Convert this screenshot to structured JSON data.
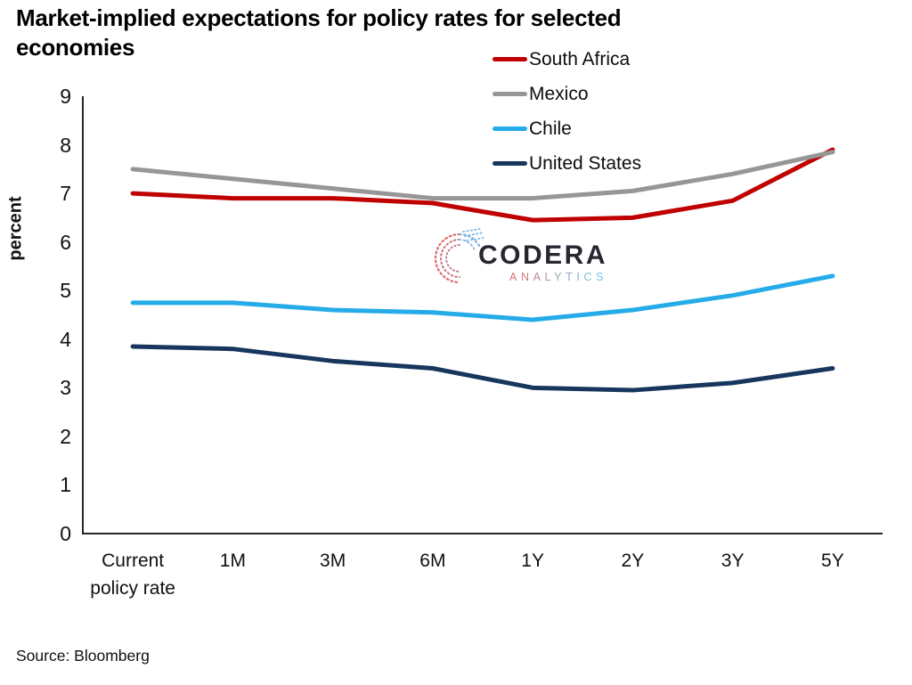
{
  "title": "Market-implied expectations for policy rates for selected economies",
  "source": "Source: Bloomberg",
  "watermark": {
    "name": "CODERA",
    "sub": "ANALYTICS"
  },
  "chart_data": {
    "type": "line",
    "title": "Market-implied expectations for policy rates for selected economies",
    "xlabel": "",
    "ylabel": "percent",
    "ylim": [
      0,
      9
    ],
    "ytick_step": 1,
    "grid": false,
    "legend_position": "top-right-inside",
    "categories": [
      "Current policy rate",
      "1M",
      "3M",
      "6M",
      "1Y",
      "2Y",
      "3Y",
      "5Y"
    ],
    "series": [
      {
        "name": "South Africa",
        "color": "#C00000",
        "values": [
          7.0,
          6.9,
          6.9,
          6.8,
          6.45,
          6.5,
          6.85,
          7.9
        ]
      },
      {
        "name": "Mexico",
        "color": "#969696",
        "values": [
          7.5,
          7.3,
          7.1,
          6.9,
          6.9,
          7.05,
          7.4,
          7.85
        ]
      },
      {
        "name": "Chile",
        "color": "#25ACE8",
        "values": [
          4.75,
          4.75,
          4.6,
          4.55,
          4.4,
          4.6,
          4.9,
          5.3
        ]
      },
      {
        "name": "United States",
        "color": "#17365D",
        "values": [
          3.85,
          3.8,
          3.55,
          3.4,
          3.0,
          2.95,
          3.1,
          3.4
        ]
      }
    ],
    "axis_color": "#262626",
    "logo_colors": {
      "red": "#D96C6C",
      "blue": "#63C7E8"
    }
  }
}
